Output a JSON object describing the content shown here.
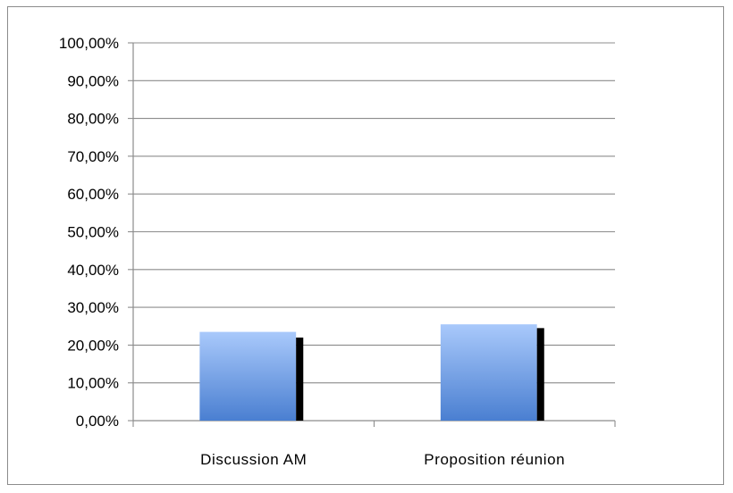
{
  "chart_data": {
    "type": "bar",
    "categories": [
      "Discussion AM",
      "Proposition réunion"
    ],
    "series": [
      {
        "values": [
          0.235,
          0.255
        ],
        "color": "#6f9fe0"
      },
      {
        "values": [
          0.22,
          0.245
        ],
        "color": "#000000"
      }
    ],
    "y_ticks": [
      "0,00%",
      "10,00%",
      "20,00%",
      "30,00%",
      "40,00%",
      "50,00%",
      "60,00%",
      "70,00%",
      "80,00%",
      "90,00%",
      "100,00%"
    ],
    "ylim": [
      0,
      1
    ],
    "grid": true,
    "legend": "none"
  }
}
